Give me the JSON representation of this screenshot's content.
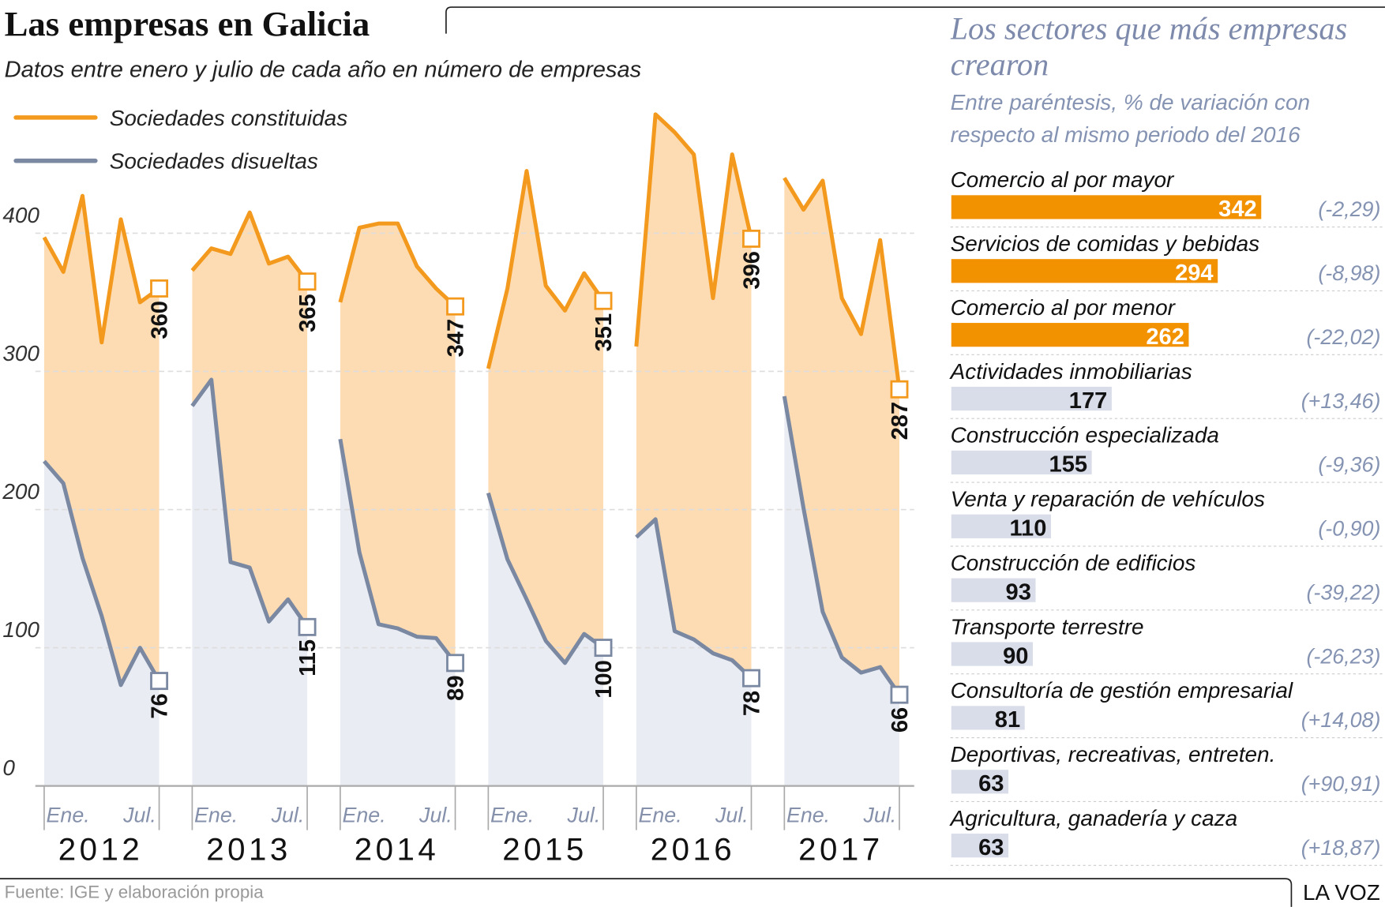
{
  "chart_data": [
    {
      "type": "line",
      "title": "Las empresas en Galicia",
      "subtitle": "Datos entre enero y julio de cada año en número de empresas",
      "ylim": [
        0,
        500
      ],
      "yticks": [
        0,
        100,
        200,
        300,
        400
      ],
      "grid": true,
      "series": [
        {
          "name": "Sociedades constituidas",
          "color": "#f39a1e",
          "fill": "#fddcb3"
        },
        {
          "name": "Sociedades disueltas",
          "color": "#7b88a2",
          "fill": "#e9ecf3"
        }
      ],
      "panels": [
        {
          "label": "2012",
          "categories": [
            "Ene.",
            null,
            null,
            null,
            null,
            null,
            "Jul."
          ],
          "values": [
            [
              397,
              372,
              427,
              321,
              410,
              350,
              360
            ],
            [
              235,
              219,
              165,
              123,
              73,
              100,
              76
            ]
          ]
        },
        {
          "label": "2013",
          "categories": [
            "Ene.",
            null,
            null,
            null,
            null,
            null,
            "Jul."
          ],
          "values": [
            [
              373,
              389,
              385,
              415,
              378,
              383,
              365
            ],
            [
              275,
              294,
              162,
              158,
              119,
              135,
              115
            ]
          ]
        },
        {
          "label": "2014",
          "categories": [
            "Ene.",
            null,
            null,
            null,
            null,
            null,
            "Jul."
          ],
          "values": [
            [
              350,
              404,
              407,
              407,
              376,
              360,
              347
            ],
            [
              251,
              169,
              117,
              114,
              108,
              107,
              89
            ]
          ]
        },
        {
          "label": "2015",
          "categories": [
            "Ene.",
            null,
            null,
            null,
            null,
            null,
            "Jul."
          ],
          "values": [
            [
              302,
              360,
              445,
              362,
              344,
              371,
              351
            ],
            [
              212,
              164,
              135,
              105,
              89,
              110,
              100
            ]
          ]
        },
        {
          "label": "2016",
          "categories": [
            "Ene.",
            null,
            null,
            null,
            null,
            null,
            "Jul."
          ],
          "values": [
            [
              318,
              486,
              473,
              457,
              353,
              457,
              396
            ],
            [
              180,
              193,
              112,
              106,
              96,
              91,
              78
            ]
          ]
        },
        {
          "label": "2017",
          "categories": [
            "Ene.",
            null,
            null,
            null,
            null,
            null,
            "Jul."
          ],
          "values": [
            [
              440,
              417,
              438,
              353,
              327,
              395,
              287
            ],
            [
              282,
              201,
              126,
              93,
              82,
              86,
              66
            ]
          ]
        }
      ],
      "source": "Fuente: IGE y elaboración propia",
      "brand": "LA VOZ"
    },
    {
      "type": "hbar",
      "title": "Los sectores que más empresas crearon",
      "subtitle": "Entre paréntesis, % de variación con respecto al mismo periodo del 2016",
      "categories": [
        "Comercio al por mayor",
        "Servicios de comidas y bebidas",
        "Comercio al por menor",
        "Actividades inmobiliarias",
        "Construcción especializada",
        "Venta y reparación de vehículos",
        "Construcción de edificios",
        "Transporte terrestre",
        "Consultoría de gestión empresarial",
        "Deportivas, recreativas, entreten.",
        "Agricultura, ganadería y caza"
      ],
      "values": [
        342,
        294,
        262,
        177,
        155,
        110,
        93,
        90,
        81,
        63,
        63
      ],
      "colors": [
        "#f39200",
        "#f39200",
        "#f39200",
        "#d9dde9",
        "#d9dde9",
        "#d9dde9",
        "#d9dde9",
        "#d9dde9",
        "#d9dde9",
        "#d9dde9",
        "#d9dde9"
      ],
      "notes": [
        "(-2,29)",
        "(-8,98)",
        "(-22,02)",
        "(+13,46)",
        "(-9,36)",
        "(-0,90)",
        "(-39,22)",
        "(-26,23)",
        "(+14,08)",
        "(+90,91)",
        "(+18,87)"
      ]
    }
  ]
}
